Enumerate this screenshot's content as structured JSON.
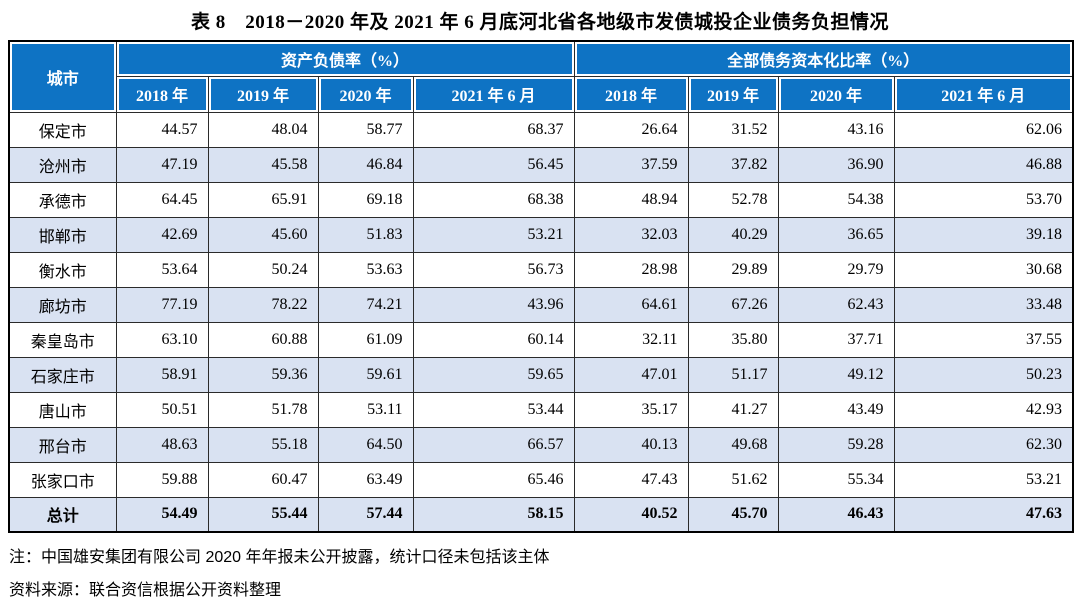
{
  "title": "表 8　2018－2020 年及 2021 年 6 月底河北省各地级市发债城投企业债务负担情况",
  "table": {
    "city_header": "城市",
    "groups": [
      {
        "label": "资产负债率（%）",
        "years": [
          "2018 年",
          "2019 年",
          "2020 年",
          "2021 年 6 月"
        ]
      },
      {
        "label": "全部债务资本化比率（%）",
        "years": [
          "2018 年",
          "2019 年",
          "2020 年",
          "2021 年 6 月"
        ]
      }
    ],
    "rows": [
      {
        "city": "保定市",
        "values": [
          "44.57",
          "48.04",
          "58.77",
          "68.37",
          "26.64",
          "31.52",
          "43.16",
          "62.06"
        ]
      },
      {
        "city": "沧州市",
        "values": [
          "47.19",
          "45.58",
          "46.84",
          "56.45",
          "37.59",
          "37.82",
          "36.90",
          "46.88"
        ]
      },
      {
        "city": "承德市",
        "values": [
          "64.45",
          "65.91",
          "69.18",
          "68.38",
          "48.94",
          "52.78",
          "54.38",
          "53.70"
        ]
      },
      {
        "city": "邯郸市",
        "values": [
          "42.69",
          "45.60",
          "51.83",
          "53.21",
          "32.03",
          "40.29",
          "36.65",
          "39.18"
        ]
      },
      {
        "city": "衡水市",
        "values": [
          "53.64",
          "50.24",
          "53.63",
          "56.73",
          "28.98",
          "29.89",
          "29.79",
          "30.68"
        ]
      },
      {
        "city": "廊坊市",
        "values": [
          "77.19",
          "78.22",
          "74.21",
          "43.96",
          "64.61",
          "67.26",
          "62.43",
          "33.48"
        ]
      },
      {
        "city": "秦皇岛市",
        "values": [
          "63.10",
          "60.88",
          "61.09",
          "60.14",
          "32.11",
          "35.80",
          "37.71",
          "37.55"
        ]
      },
      {
        "city": "石家庄市",
        "values": [
          "58.91",
          "59.36",
          "59.61",
          "59.65",
          "47.01",
          "51.17",
          "49.12",
          "50.23"
        ]
      },
      {
        "city": "唐山市",
        "values": [
          "50.51",
          "51.78",
          "53.11",
          "53.44",
          "35.17",
          "41.27",
          "43.49",
          "42.93"
        ]
      },
      {
        "city": "邢台市",
        "values": [
          "48.63",
          "55.18",
          "64.50",
          "66.57",
          "40.13",
          "49.68",
          "59.28",
          "62.30"
        ]
      },
      {
        "city": "张家口市",
        "values": [
          "59.88",
          "60.47",
          "63.49",
          "65.46",
          "47.43",
          "51.62",
          "55.34",
          "53.21"
        ]
      },
      {
        "city": "总计",
        "values": [
          "54.49",
          "55.44",
          "57.44",
          "58.15",
          "40.52",
          "45.70",
          "46.43",
          "47.63"
        ],
        "bold": true
      }
    ]
  },
  "notes": {
    "note": "注：中国雄安集团有限公司 2020 年年报未公开披露，统计口径未包括该主体",
    "source": "资料来源：联合资信根据公开资料整理"
  },
  "colors": {
    "header_blue": "#0E73C4",
    "stripe_blue": "#D9E2F2",
    "grid_line": "#2b2b2b",
    "heavy_border": "#000000"
  }
}
